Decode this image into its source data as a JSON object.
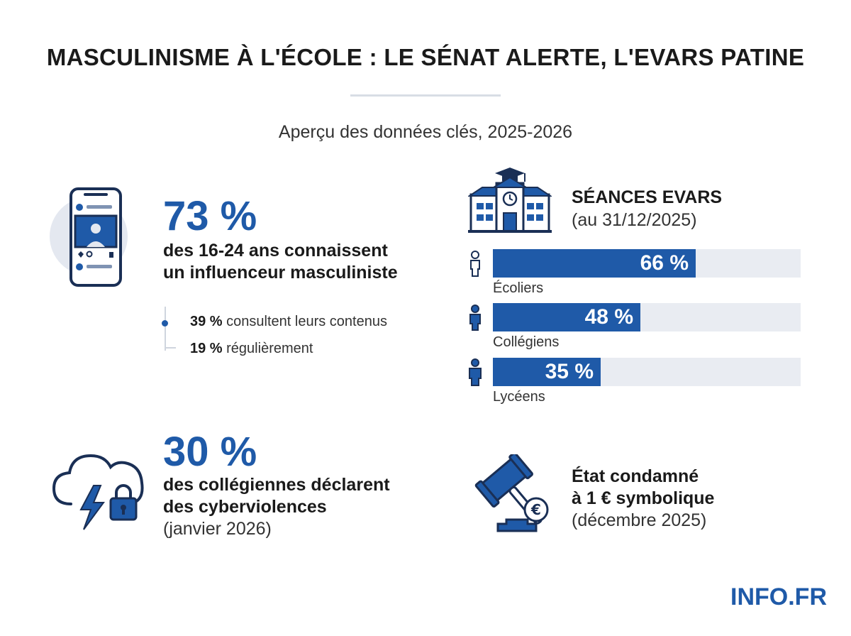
{
  "header": {
    "title": "MASCULINISME À L'ÉCOLE : LE SÉNAT ALERTE, L'EVARS PATINE",
    "subtitle": "Aperçu des données clés, 2025-2026"
  },
  "stat_influencer": {
    "value": "73 %",
    "line1": "des 16-24 ans connaissent",
    "line2": "un influenceur masculiniste",
    "icon": "smartphone-icon",
    "details": [
      {
        "strong": "39 %",
        "text": " consultent leurs contenus"
      },
      {
        "strong": "19 %",
        "text": " régulièrement"
      }
    ]
  },
  "stat_cyber": {
    "value": "30 %",
    "line1": "des collégiennes déclarent",
    "line2": "des cyberviolences",
    "note": "(janvier 2026)",
    "icon": "cloud-lock-icon"
  },
  "evars": {
    "title": "SÉANCES EVARS",
    "subtitle": "(au 31/12/2025)",
    "icon": "school-building-icon"
  },
  "verdict": {
    "line1": "État condamné",
    "line2": "à 1 € symbolique",
    "note": "(décembre 2025)",
    "icon": "gavel-euro-icon"
  },
  "chart_data": {
    "type": "bar",
    "title": "SÉANCES EVARS",
    "subtitle": "(au 31/12/2025)",
    "categories": [
      "Écoliers",
      "Collégiens",
      "Lycéens"
    ],
    "values": [
      66,
      48,
      35
    ],
    "value_labels": [
      "66 %",
      "48 %",
      "35 %"
    ],
    "xlim": [
      0,
      100
    ],
    "orientation": "horizontal",
    "grid": false,
    "colors": {
      "bar": "#1f5aa8",
      "track": "#e9ecf2"
    }
  },
  "footer": {
    "brand": "INFO.FR"
  },
  "colors": {
    "accent": "#1f5aa8",
    "text": "#1a1a1a"
  }
}
